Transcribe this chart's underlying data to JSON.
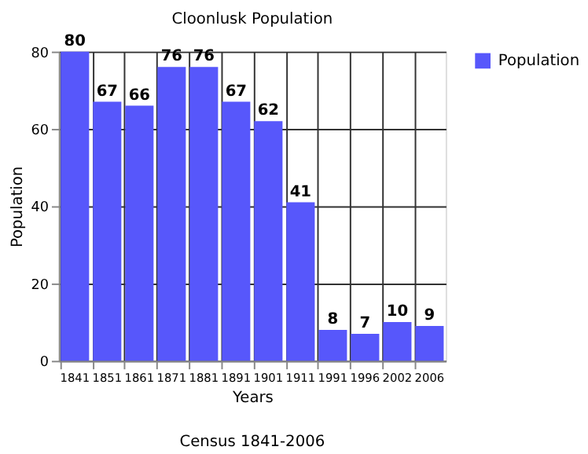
{
  "chart_data": {
    "type": "bar",
    "title": "Cloonlusk Population",
    "xlabel": "Years",
    "ylabel": "Population",
    "categories": [
      "1841",
      "1851",
      "1861",
      "1871",
      "1881",
      "1891",
      "1901",
      "1911",
      "1991",
      "1996",
      "2002",
      "2006"
    ],
    "series": [
      {
        "name": "Population",
        "color": "#5757fb",
        "values": [
          80,
          67,
          66,
          76,
          76,
          67,
          62,
          41,
          8,
          7,
          10,
          9
        ]
      }
    ],
    "ylim": [
      0,
      80
    ],
    "yticks": [
      0,
      20,
      40,
      60,
      80
    ],
    "grid": true,
    "legend": "right",
    "data_labels": true,
    "annotations": [
      "Census 1841-2006"
    ]
  }
}
